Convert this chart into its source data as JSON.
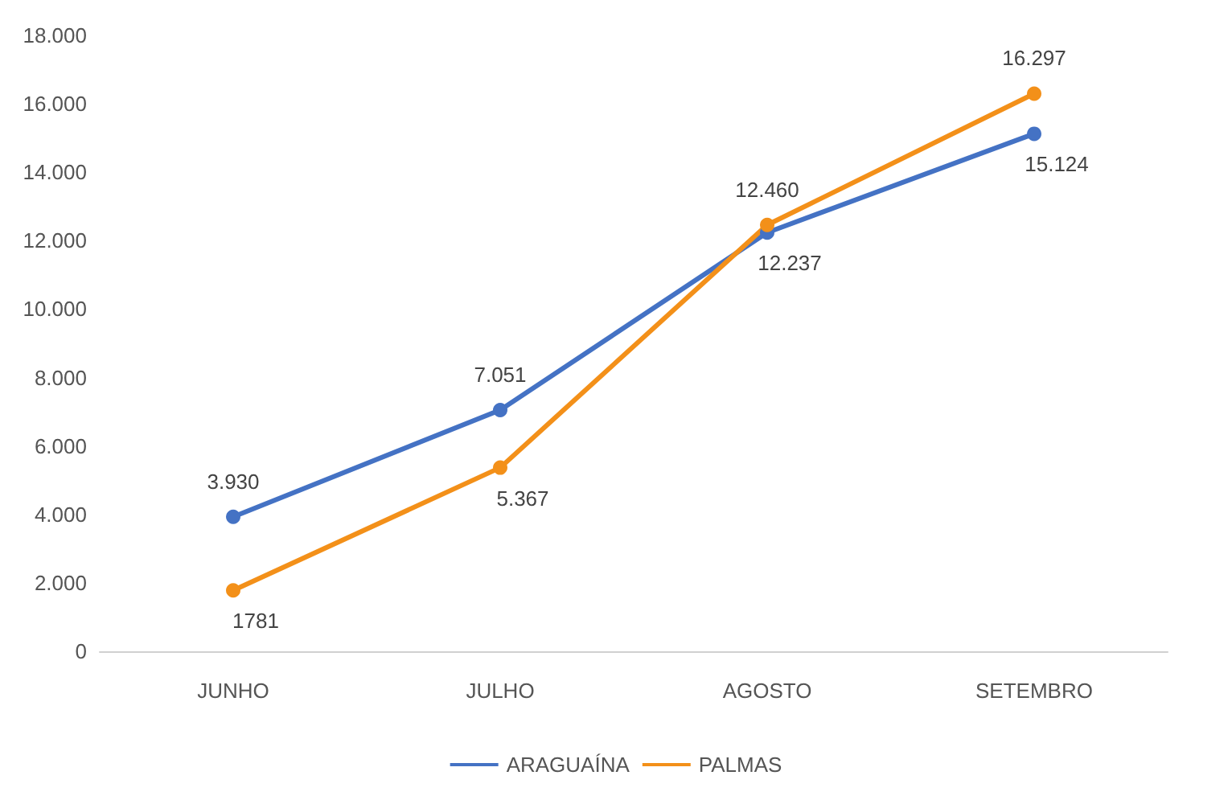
{
  "chart_data": {
    "type": "line",
    "categories": [
      "JUNHO",
      "JULHO",
      "AGOSTO",
      "SETEMBRO"
    ],
    "series": [
      {
        "name": "ARAGUAÍNA",
        "color": "#4472c4",
        "values": [
          3930,
          7051,
          12237,
          15124
        ],
        "value_labels": [
          "3.930",
          "7.051",
          "12.237",
          "15.124"
        ]
      },
      {
        "name": "PALMAS",
        "color": "#f39019",
        "values": [
          1781,
          5367,
          12460,
          16297
        ],
        "value_labels": [
          "1781",
          "5.367",
          "12.460",
          "16.297"
        ]
      }
    ],
    "ylim": [
      0,
      18000
    ],
    "yticks": [
      0,
      {
        "value": 2000,
        "label": "2.000"
      },
      {
        "value": 4000,
        "label": "4.000"
      },
      {
        "value": 6000,
        "label": "6.000"
      },
      {
        "value": 8000,
        "label": "8.000"
      },
      {
        "value": 10000,
        "label": "10.000"
      },
      {
        "value": 12000,
        "label": "12.000"
      },
      {
        "value": 14000,
        "label": "14.000"
      },
      {
        "value": 16000,
        "label": "16.000"
      },
      {
        "value": 18000,
        "label": "18.000"
      }
    ],
    "grid": false,
    "legend": "bottom",
    "marker": "circle",
    "line_style": "solid"
  }
}
